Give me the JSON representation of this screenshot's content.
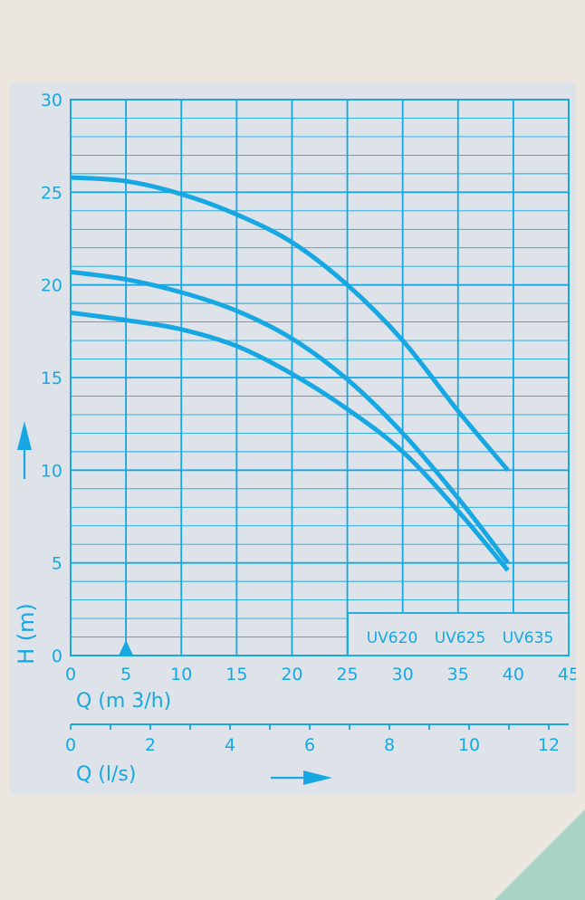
{
  "colors": {
    "line": "#17a8e4",
    "panel": "#dde3e8",
    "page": "#ebe6e0",
    "accent_corner": "#a9d3c6"
  },
  "chart_data": {
    "type": "line",
    "ylabel": "H (m)",
    "xlabel": "Q (m 3/h)",
    "x2label": "Q (l/s)",
    "xlim": [
      0,
      45
    ],
    "ylim": [
      0,
      30
    ],
    "x2lim": [
      0,
      12.5
    ],
    "x_ticks": [
      0,
      5,
      10,
      15,
      20,
      25,
      30,
      35,
      40,
      45
    ],
    "y_ticks": [
      0,
      5,
      10,
      15,
      20,
      25,
      30
    ],
    "x2_ticks": [
      0,
      2,
      4,
      6,
      8,
      10,
      12
    ],
    "marker_x": 5,
    "grid": true,
    "legend": [
      "UV620",
      "UV625",
      "UV635"
    ],
    "series": [
      {
        "values": [
          [
            0,
            25.8
          ],
          [
            5,
            25.6
          ],
          [
            10,
            24.9
          ],
          [
            15,
            23.8
          ],
          [
            20,
            22.3
          ],
          [
            25,
            20.0
          ],
          [
            30,
            17.0
          ],
          [
            35,
            13.2
          ],
          [
            39.5,
            10.0
          ]
        ]
      },
      {
        "values": [
          [
            0,
            20.7
          ],
          [
            5,
            20.3
          ],
          [
            10,
            19.6
          ],
          [
            15,
            18.6
          ],
          [
            20,
            17.1
          ],
          [
            25,
            14.9
          ],
          [
            30,
            12.0
          ],
          [
            35,
            8.5
          ],
          [
            39.5,
            5.0
          ]
        ]
      },
      {
        "values": [
          [
            0,
            18.5
          ],
          [
            5,
            18.1
          ],
          [
            10,
            17.6
          ],
          [
            15,
            16.7
          ],
          [
            20,
            15.2
          ],
          [
            25,
            13.3
          ],
          [
            30,
            11.0
          ],
          [
            35,
            7.8
          ],
          [
            39.5,
            4.6
          ]
        ]
      }
    ]
  }
}
